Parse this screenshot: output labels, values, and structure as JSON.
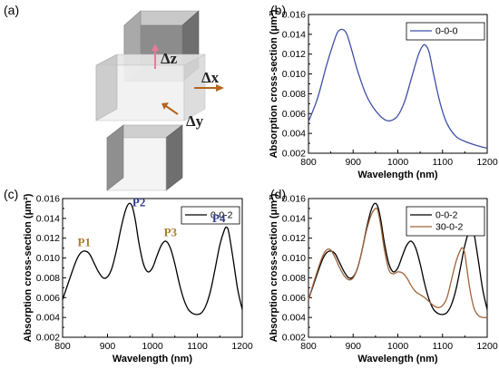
{
  "panel_a": {
    "label": "(a)",
    "dz": "Δz",
    "dx": "Δx",
    "dy": "Δy"
  },
  "chart_data": [
    {
      "panel": "(b)",
      "type": "line",
      "xlabel": "Wavelength (nm)",
      "ylabel": "Absorption cross-section (μm²)",
      "xlim": [
        800,
        1200
      ],
      "ylim": [
        0.002,
        0.016
      ],
      "xticks": [
        "800",
        "900",
        "1000",
        "1100",
        "1200"
      ],
      "yticks": [
        "0.002",
        "0.004",
        "0.006",
        "0.008",
        "0.010",
        "0.012",
        "0.014",
        "0.016"
      ],
      "legend_position": "top-right",
      "series": [
        {
          "name": "0-0-0",
          "color": "#3f4fa6",
          "x": [
            800,
            820,
            840,
            855,
            865,
            875,
            885,
            895,
            910,
            930,
            950,
            970,
            985,
            1000,
            1015,
            1030,
            1045,
            1055,
            1062,
            1070,
            1080,
            1095,
            1110,
            1130,
            1150,
            1175,
            1200
          ],
          "y": [
            0.0052,
            0.0075,
            0.0108,
            0.013,
            0.0142,
            0.0145,
            0.0141,
            0.0127,
            0.0103,
            0.0078,
            0.0063,
            0.0054,
            0.0053,
            0.0058,
            0.0072,
            0.0095,
            0.0118,
            0.0128,
            0.0129,
            0.0122,
            0.01,
            0.007,
            0.005,
            0.0037,
            0.0032,
            0.0028,
            0.0025
          ]
        }
      ]
    },
    {
      "panel": "(c)",
      "type": "line",
      "xlabel": "Wavelength (nm)",
      "ylabel": "Absorption cross-section (μm²)",
      "xlim": [
        800,
        1200
      ],
      "ylim": [
        0.002,
        0.016
      ],
      "xticks": [
        "800",
        "900",
        "1000",
        "1100",
        "1200"
      ],
      "yticks": [
        "0.002",
        "0.004",
        "0.006",
        "0.008",
        "0.010",
        "0.012",
        "0.014",
        "0.016"
      ],
      "legend_position": "top-right",
      "series": [
        {
          "name": "0-0-2",
          "color": "#000000",
          "x": [
            800,
            815,
            830,
            840,
            850,
            860,
            870,
            880,
            890,
            900,
            910,
            920,
            930,
            940,
            948,
            955,
            962,
            970,
            980,
            990,
            1000,
            1010,
            1020,
            1030,
            1040,
            1050,
            1060,
            1070,
            1080,
            1090,
            1100,
            1110,
            1120,
            1130,
            1140,
            1150,
            1160,
            1165,
            1170,
            1180,
            1190,
            1200
          ],
          "y": [
            0.0058,
            0.0078,
            0.0097,
            0.0105,
            0.0107,
            0.0104,
            0.0095,
            0.0086,
            0.008,
            0.0081,
            0.009,
            0.0108,
            0.013,
            0.0148,
            0.0155,
            0.0152,
            0.0138,
            0.0115,
            0.0094,
            0.0086,
            0.009,
            0.0102,
            0.0113,
            0.0117,
            0.011,
            0.0094,
            0.0074,
            0.0058,
            0.0048,
            0.0044,
            0.0043,
            0.0045,
            0.0053,
            0.0068,
            0.009,
            0.0113,
            0.0128,
            0.0131,
            0.0126,
            0.0098,
            0.0068,
            0.0048
          ]
        }
      ],
      "annotations": [
        {
          "text": "P1",
          "x": 848,
          "y": 0.0112,
          "color": "#a87d2a"
        },
        {
          "text": "P2",
          "x": 970,
          "y": 0.0152,
          "color": "#2e3b8a"
        },
        {
          "text": "P3",
          "x": 1040,
          "y": 0.0122,
          "color": "#a87d2a"
        },
        {
          "text": "P4",
          "x": 1148,
          "y": 0.0136,
          "color": "#2e3b8a"
        }
      ]
    },
    {
      "panel": "(d)",
      "type": "line",
      "xlabel": "Wavelength (nm)",
      "ylabel": "Absorption cross-section (μm²)",
      "xlim": [
        800,
        1200
      ],
      "ylim": [
        0.002,
        0.016
      ],
      "xticks": [
        "800",
        "900",
        "1000",
        "1100",
        "1200"
      ],
      "yticks": [
        "0.002",
        "0.004",
        "0.006",
        "0.008",
        "0.010",
        "0.012",
        "0.014",
        "0.016"
      ],
      "legend_position": "top-right",
      "series": [
        {
          "name": "0-0-2",
          "color": "#000000",
          "x": [
            800,
            815,
            830,
            840,
            850,
            860,
            870,
            880,
            890,
            900,
            910,
            920,
            930,
            940,
            948,
            955,
            962,
            970,
            980,
            990,
            1000,
            1010,
            1020,
            1030,
            1040,
            1050,
            1060,
            1070,
            1080,
            1090,
            1100,
            1110,
            1120,
            1130,
            1140,
            1150,
            1160,
            1165,
            1170,
            1180,
            1190,
            1200
          ],
          "y": [
            0.0058,
            0.0078,
            0.0097,
            0.0105,
            0.0107,
            0.0104,
            0.0095,
            0.0086,
            0.008,
            0.0081,
            0.009,
            0.0108,
            0.013,
            0.0148,
            0.0155,
            0.0152,
            0.0138,
            0.0115,
            0.0094,
            0.0086,
            0.009,
            0.0102,
            0.0113,
            0.0117,
            0.011,
            0.0094,
            0.0074,
            0.0058,
            0.0048,
            0.0044,
            0.0043,
            0.0045,
            0.0053,
            0.0068,
            0.009,
            0.0113,
            0.0128,
            0.0131,
            0.0126,
            0.0098,
            0.0068,
            0.0048
          ]
        },
        {
          "name": "30-0-2",
          "color": "#a0643c",
          "x": [
            800,
            815,
            830,
            840,
            850,
            860,
            870,
            880,
            890,
            900,
            910,
            920,
            930,
            940,
            950,
            955,
            962,
            970,
            980,
            990,
            1000,
            1010,
            1020,
            1030,
            1040,
            1050,
            1060,
            1070,
            1080,
            1090,
            1100,
            1110,
            1120,
            1130,
            1140,
            1145,
            1150,
            1160,
            1170,
            1180,
            1190,
            1200
          ],
          "y": [
            0.0058,
            0.008,
            0.01,
            0.0108,
            0.0108,
            0.01,
            0.009,
            0.0082,
            0.0078,
            0.008,
            0.009,
            0.0108,
            0.0128,
            0.0143,
            0.015,
            0.0148,
            0.0132,
            0.0108,
            0.0088,
            0.0084,
            0.0086,
            0.0085,
            0.008,
            0.0072,
            0.0066,
            0.0063,
            0.006,
            0.0056,
            0.0052,
            0.005,
            0.0052,
            0.006,
            0.0078,
            0.0096,
            0.0108,
            0.011,
            0.0104,
            0.0072,
            0.005,
            0.0042,
            0.004,
            0.004
          ]
        }
      ]
    }
  ]
}
